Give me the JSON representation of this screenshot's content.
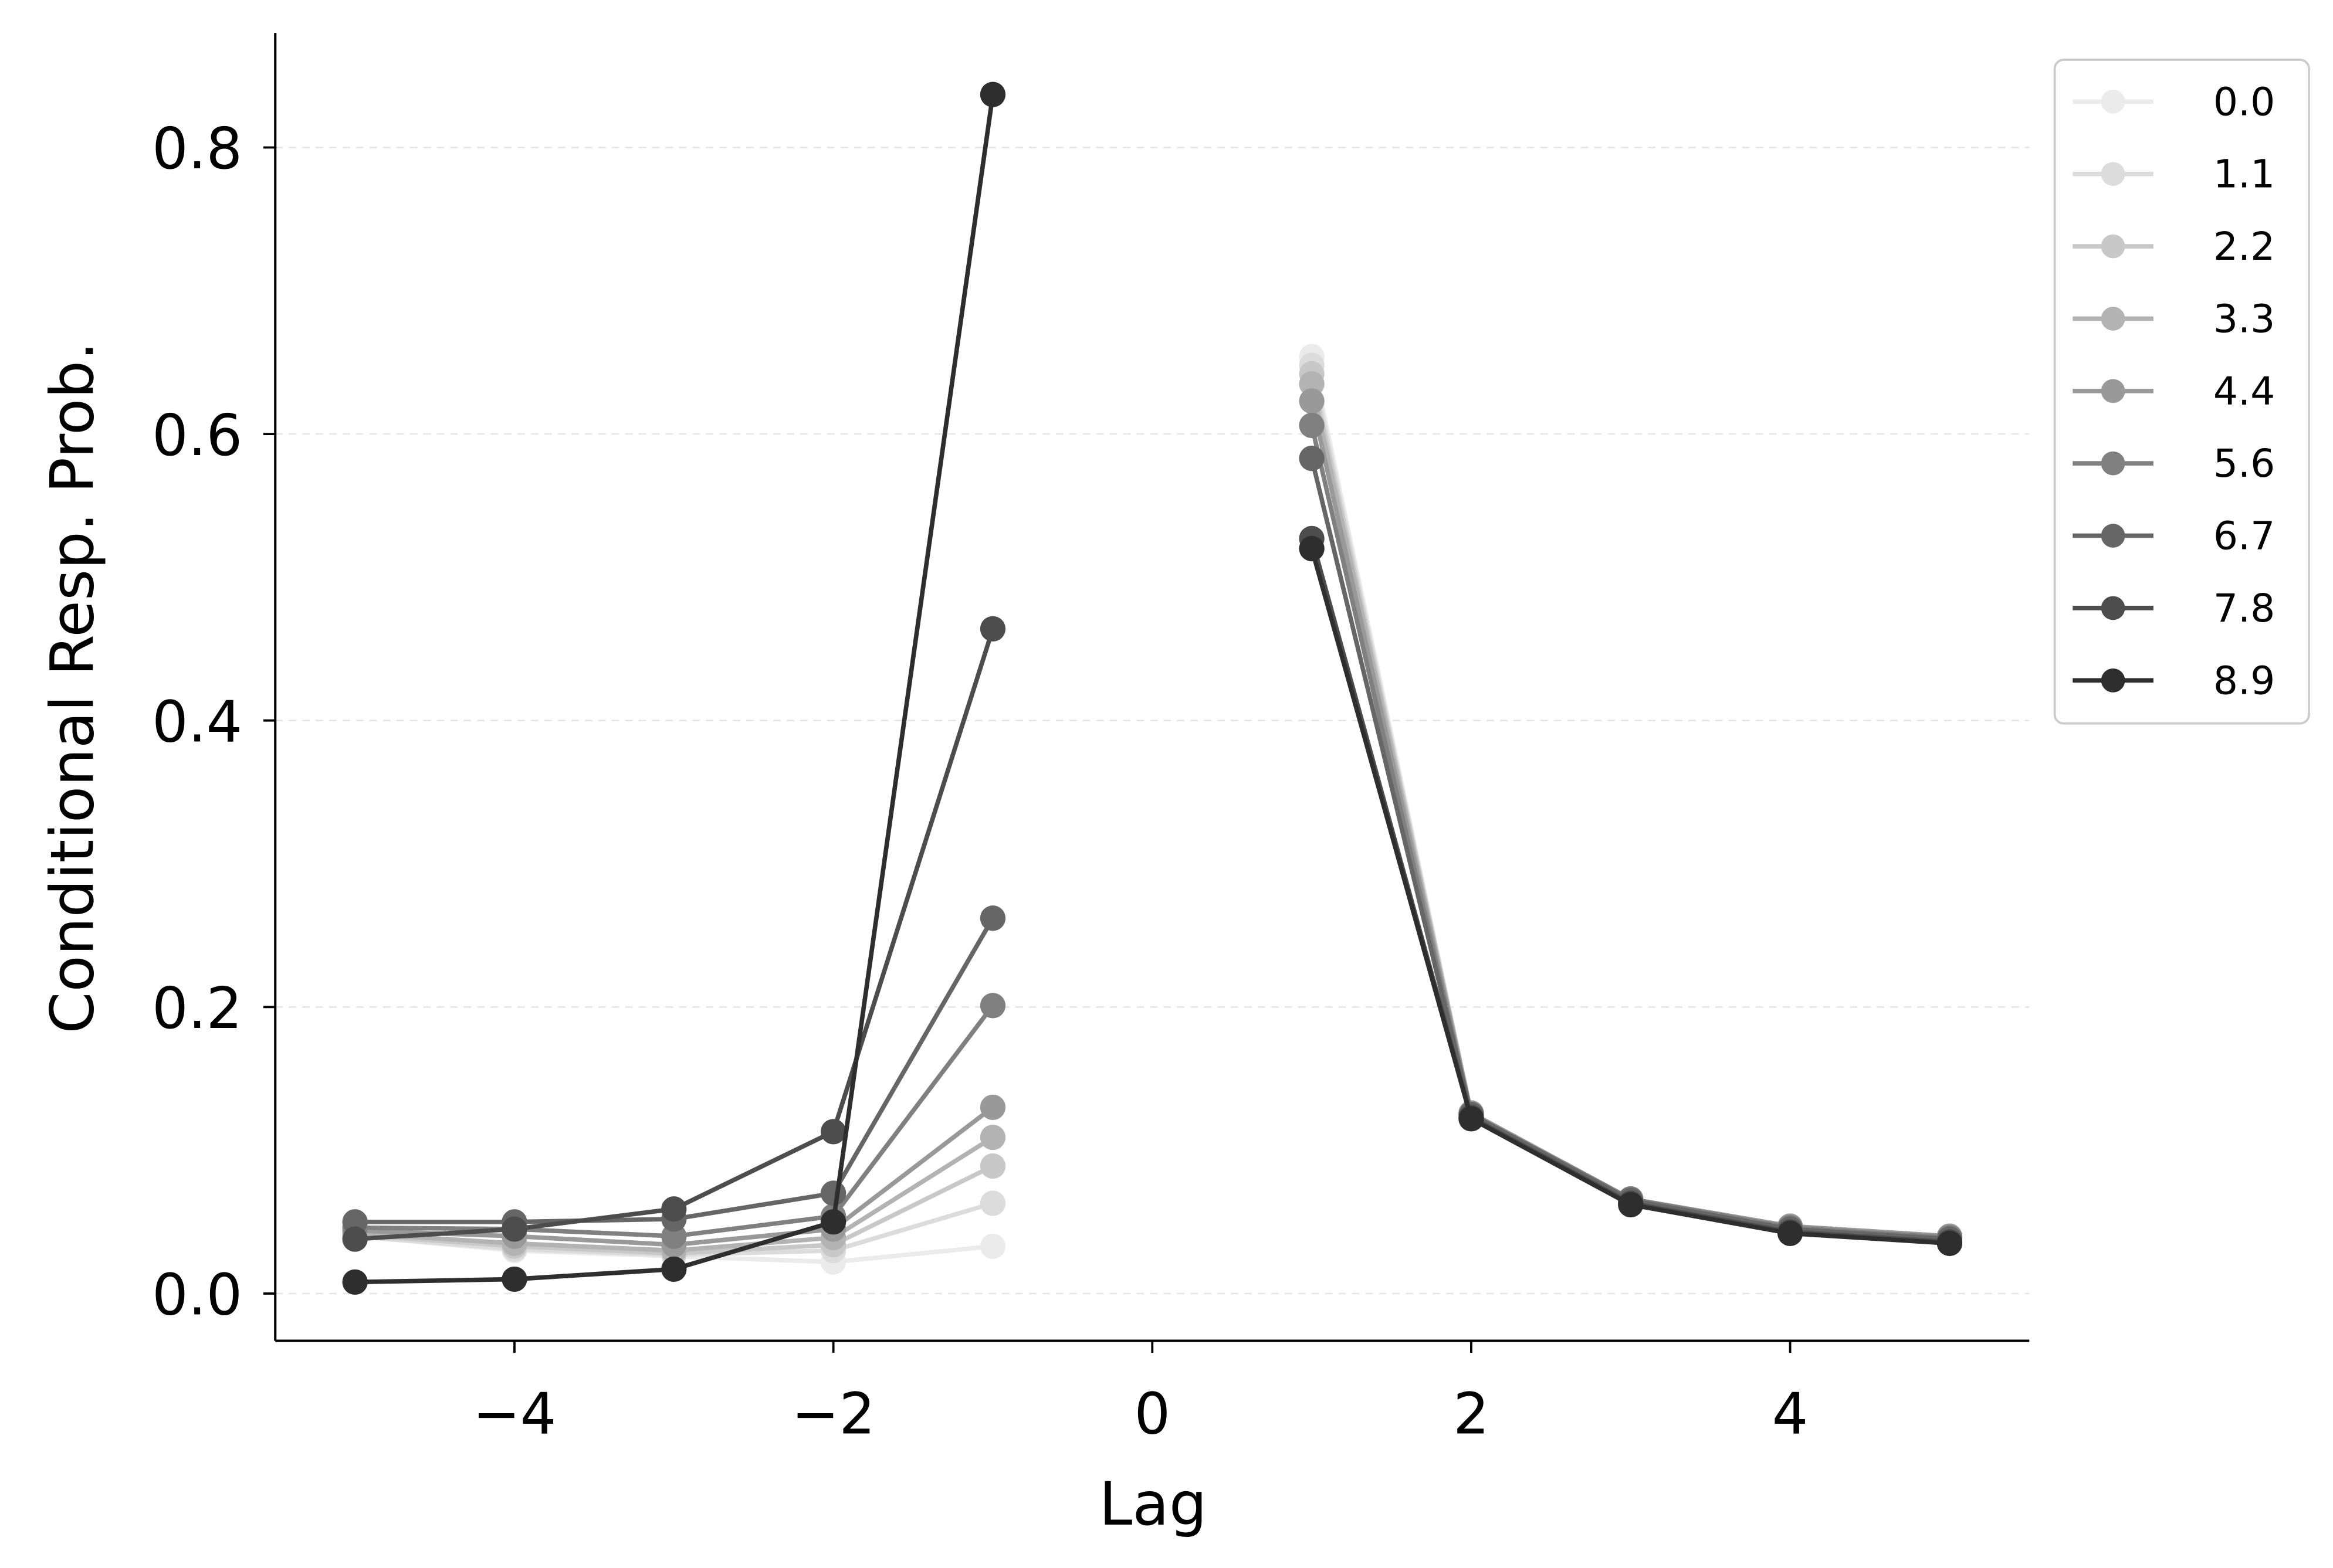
{
  "chart_data": {
    "type": "line",
    "title": "",
    "xlabel": "Lag",
    "ylabel": "Conditional Resp. Prob.",
    "xlim": [
      -5.5,
      5.5
    ],
    "ylim": [
      -0.033,
      0.88
    ],
    "xticks": [
      -4,
      -2,
      0,
      2,
      4
    ],
    "xtick_labels": [
      "−4",
      "−2",
      "0",
      "2",
      "4"
    ],
    "yticks": [
      0.0,
      0.2,
      0.4,
      0.6,
      0.8
    ],
    "ytick_labels": [
      "0.0",
      "0.2",
      "0.4",
      "0.6",
      "0.8"
    ],
    "grid": "horizontal dashed",
    "legend_position": "outside-top-right",
    "x_left": [
      -5,
      -4,
      -3,
      -2,
      -1
    ],
    "x_right": [
      1,
      2,
      3,
      4,
      5
    ],
    "series": [
      {
        "name": "0.0",
        "color": "#ebebeb",
        "left": [
          0.04,
          0.03,
          0.026,
          0.022,
          0.033
        ],
        "right": [
          0.654,
          0.126,
          0.066,
          0.047,
          0.04
        ]
      },
      {
        "name": "1.1",
        "color": "#dcdcdc",
        "left": [
          0.04,
          0.031,
          0.027,
          0.03,
          0.063
        ],
        "right": [
          0.648,
          0.126,
          0.066,
          0.047,
          0.04
        ]
      },
      {
        "name": "2.2",
        "color": "#c8c8c8",
        "left": [
          0.041,
          0.033,
          0.028,
          0.034,
          0.089
        ],
        "right": [
          0.642,
          0.126,
          0.066,
          0.047,
          0.04
        ]
      },
      {
        "name": "3.3",
        "color": "#b3b3b3",
        "left": [
          0.042,
          0.035,
          0.03,
          0.039,
          0.109
        ],
        "right": [
          0.635,
          0.126,
          0.066,
          0.047,
          0.04
        ]
      },
      {
        "name": "4.4",
        "color": "#999999",
        "left": [
          0.044,
          0.04,
          0.034,
          0.045,
          0.13
        ],
        "right": [
          0.623,
          0.126,
          0.066,
          0.047,
          0.04
        ]
      },
      {
        "name": "5.6",
        "color": "#808080",
        "left": [
          0.046,
          0.045,
          0.04,
          0.054,
          0.201
        ],
        "right": [
          0.606,
          0.125,
          0.066,
          0.046,
          0.039
        ]
      },
      {
        "name": "6.7",
        "color": "#666666",
        "left": [
          0.05,
          0.05,
          0.052,
          0.07,
          0.262
        ],
        "right": [
          0.583,
          0.125,
          0.065,
          0.045,
          0.038
        ]
      },
      {
        "name": "7.8",
        "color": "#4d4d4d",
        "left": [
          0.038,
          0.045,
          0.059,
          0.113,
          0.464
        ],
        "right": [
          0.527,
          0.123,
          0.063,
          0.043,
          0.036
        ]
      },
      {
        "name": "8.9",
        "color": "#2e2e2e",
        "left": [
          0.008,
          0.01,
          0.017,
          0.05,
          0.837
        ],
        "right": [
          0.52,
          0.122,
          0.062,
          0.042,
          0.035
        ]
      }
    ]
  }
}
